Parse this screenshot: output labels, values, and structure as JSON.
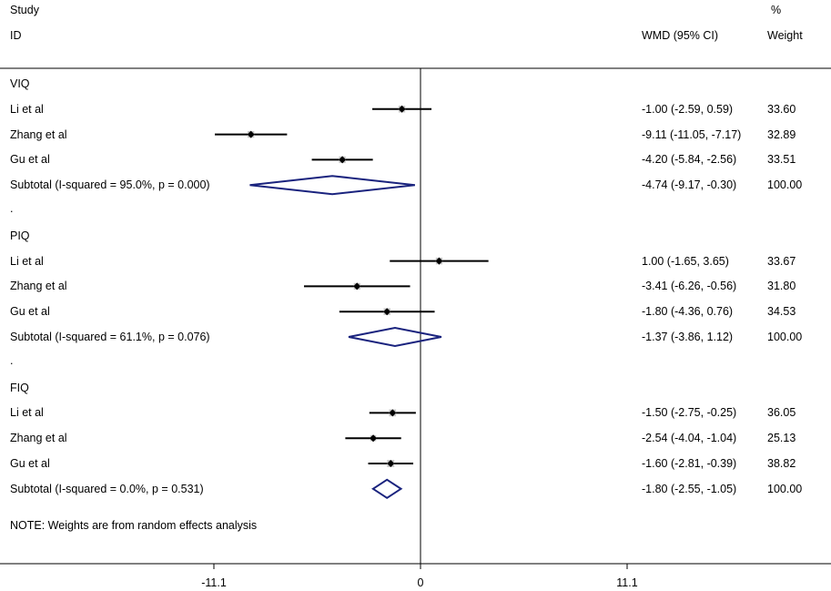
{
  "chart_data": {
    "type": "forest",
    "title": "",
    "header": {
      "study_line1": "Study",
      "study_line2": "ID",
      "effect_label": "WMD (95% CI)",
      "weight_line1": "%",
      "weight_line2": "Weight"
    },
    "x_ticks": [
      -11.1,
      0,
      11.1
    ],
    "x_tick_labels": [
      "-11.1",
      "0",
      "11.1"
    ],
    "rows": [
      {
        "kind": "group",
        "label": "VIQ"
      },
      {
        "kind": "study",
        "label": "Li et al",
        "est": -1.0,
        "lo": -2.59,
        "hi": 0.59,
        "ci_text": "-1.00 (-2.59, 0.59)",
        "weight": "33.60"
      },
      {
        "kind": "study",
        "label": "Zhang et al",
        "est": -9.11,
        "lo": -11.05,
        "hi": -7.17,
        "ci_text": "-9.11 (-11.05, -7.17)",
        "weight": "32.89"
      },
      {
        "kind": "study",
        "label": "Gu et al",
        "est": -4.2,
        "lo": -5.84,
        "hi": -2.56,
        "ci_text": "-4.20 (-5.84, -2.56)",
        "weight": "33.51"
      },
      {
        "kind": "subtotal",
        "label": "Subtotal  (I-squared = 95.0%, p = 0.000)",
        "est": -4.74,
        "lo": -9.17,
        "hi": -0.3,
        "ci_text": "-4.74 (-9.17, -0.30)",
        "weight": "100.00"
      },
      {
        "kind": "dot",
        "label": "."
      },
      {
        "kind": "group",
        "label": "PIQ"
      },
      {
        "kind": "study",
        "label": "Li et al",
        "est": 1.0,
        "lo": -1.65,
        "hi": 3.65,
        "ci_text": "1.00 (-1.65, 3.65)",
        "weight": "33.67"
      },
      {
        "kind": "study",
        "label": "Zhang et al",
        "est": -3.41,
        "lo": -6.26,
        "hi": -0.56,
        "ci_text": "-3.41 (-6.26, -0.56)",
        "weight": "31.80"
      },
      {
        "kind": "study",
        "label": "Gu et al",
        "est": -1.8,
        "lo": -4.36,
        "hi": 0.76,
        "ci_text": "-1.80 (-4.36, 0.76)",
        "weight": "34.53"
      },
      {
        "kind": "subtotal",
        "label": "Subtotal  (I-squared = 61.1%, p = 0.076)",
        "est": -1.37,
        "lo": -3.86,
        "hi": 1.12,
        "ci_text": "-1.37 (-3.86, 1.12)",
        "weight": "100.00"
      },
      {
        "kind": "dot",
        "label": "."
      },
      {
        "kind": "group",
        "label": "FIQ"
      },
      {
        "kind": "study",
        "label": "Li et al",
        "est": -1.5,
        "lo": -2.75,
        "hi": -0.25,
        "ci_text": "-1.50 (-2.75, -0.25)",
        "weight": "36.05"
      },
      {
        "kind": "study",
        "label": "Zhang et al",
        "est": -2.54,
        "lo": -4.04,
        "hi": -1.04,
        "ci_text": "-2.54 (-4.04, -1.04)",
        "weight": "25.13"
      },
      {
        "kind": "study",
        "label": "Gu et al",
        "est": -1.6,
        "lo": -2.81,
        "hi": -0.39,
        "ci_text": "-1.60 (-2.81, -0.39)",
        "weight": "38.82"
      },
      {
        "kind": "subtotal",
        "label": "Subtotal  (I-squared = 0.0%, p = 0.531)",
        "est": -1.8,
        "lo": -2.55,
        "hi": -1.05,
        "ci_text": "-1.80 (-2.55, -1.05)",
        "weight": "100.00"
      }
    ],
    "note": "NOTE: Weights are from random effects analysis",
    "colors": {
      "diamond": "#1a237e",
      "line": "#000000"
    }
  }
}
